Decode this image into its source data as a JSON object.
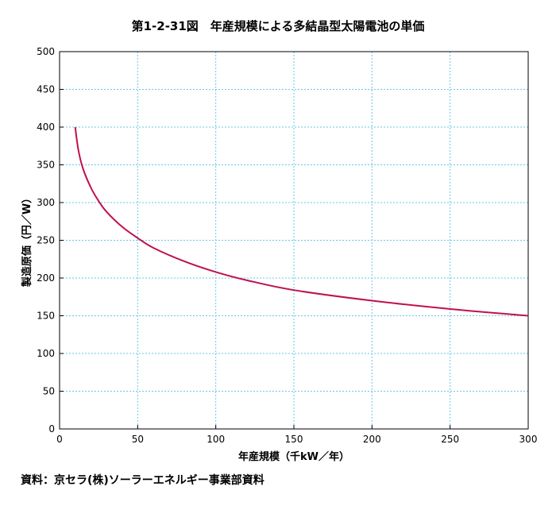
{
  "chart_data": {
    "type": "line",
    "title": "第1-2-31図　年産規模による多結晶型太陽電池の単価",
    "xlabel": "年産規模（千kW／年）",
    "ylabel": "製造原価（円／W）",
    "xlim": [
      0,
      300
    ],
    "ylim": [
      0,
      500
    ],
    "x_ticks": [
      0,
      50,
      100,
      150,
      200,
      250,
      300
    ],
    "y_ticks": [
      0,
      50,
      100,
      150,
      200,
      250,
      300,
      350,
      400,
      450,
      500
    ],
    "grid": true,
    "colors": {
      "line": "#c0104f",
      "grid": "#66c8e8"
    },
    "series": [
      {
        "x": [
          10,
          12,
          15,
          20,
          25,
          30,
          40,
          50,
          60,
          80,
          100,
          120,
          150,
          200,
          250,
          300
        ],
        "values": [
          400,
          370,
          345,
          320,
          302,
          288,
          268,
          253,
          240,
          222,
          208,
          197,
          184,
          170,
          159,
          150
        ]
      }
    ]
  },
  "source": "資料：京セラ(株)ソーラーエネルギー事業部資料"
}
